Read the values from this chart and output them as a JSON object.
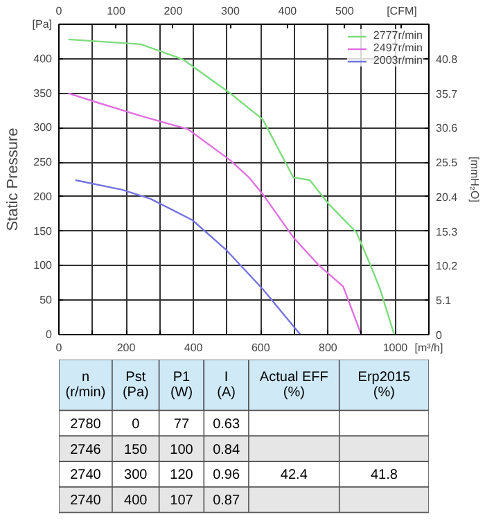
{
  "chart_data": [
    {
      "type": "line",
      "ylabel": "Static Pressure",
      "y2label": "[mmH₂O]",
      "legend": "top right",
      "grid": true,
      "line_style": "solid",
      "marker": "none",
      "xlim": [
        0,
        1100
      ],
      "ylim": [
        0,
        450
      ],
      "x2lim": [
        0,
        647.4
      ],
      "y2lim": [
        0,
        45.9
      ],
      "xticks": [
        0,
        {
          "value": 100,
          "label": null
        },
        200,
        {
          "value": 300,
          "label": null
        },
        400,
        {
          "value": 500,
          "label": null
        },
        600,
        {
          "value": 700,
          "label": null
        },
        800,
        {
          "value": 900,
          "label": null
        },
        1000,
        {
          "value": 1100,
          "label": "[m³/h]"
        }
      ],
      "yticks": [
        0,
        50,
        100,
        150,
        200,
        250,
        300,
        350,
        400,
        {
          "value": 450,
          "label": "[Pa]"
        }
      ],
      "x2ticks": [
        0,
        100,
        200,
        300,
        400,
        500,
        {
          "value": 600,
          "label": "[CFM]"
        }
      ],
      "y2ticks": [
        0,
        5.1,
        10.2,
        15.3,
        20.4,
        25.5,
        30.6,
        35.7,
        40.8
      ],
      "series": [
        {
          "name": "2777r/min",
          "color": "#7ddc7d",
          "x": [
            28,
            244,
            369,
            509,
            606,
            697,
            746,
            801,
            885,
            927,
            955,
            997
          ],
          "values": [
            428,
            421,
            399,
            350,
            312,
            228,
            224,
            190,
            148,
            100,
            66,
            0
          ]
        },
        {
          "name": "2497r/min",
          "color": "#e070e0",
          "x": [
            28,
            118,
            244,
            383,
            509,
            565,
            607,
            697,
            774,
            845,
            899
          ],
          "values": [
            350,
            336,
            317,
            298,
            253,
            228,
            203,
            141,
            100,
            70,
            0
          ]
        },
        {
          "name": "2003r/min",
          "color": "#7474e0",
          "x": [
            49,
            188,
            272,
            397,
            495,
            606,
            718
          ],
          "values": [
            224,
            210,
            197,
            166,
            124,
            66,
            0
          ]
        }
      ]
    },
    {
      "type": "other",
      "categories": [
        "n (r/min)",
        "Pst (Pa)",
        "P1 (W)",
        "I (A)",
        "Actual EFF (%)",
        "Erp2015 (%)"
      ],
      "cell_labels": [
        [
          "2780",
          "0",
          "77",
          "0.63",
          null,
          null
        ],
        [
          "2746",
          "150",
          "100",
          "0.84",
          null,
          null
        ],
        [
          "2740",
          "300",
          "120",
          "0.96",
          "42.4",
          "41.8"
        ],
        [
          "2740",
          "400",
          "107",
          "0.87",
          null,
          null
        ]
      ]
    }
  ]
}
